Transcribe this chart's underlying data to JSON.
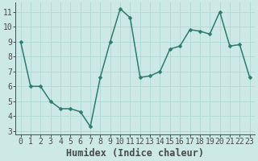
{
  "x": [
    0,
    1,
    2,
    3,
    4,
    5,
    6,
    7,
    8,
    9,
    10,
    11,
    12,
    13,
    14,
    15,
    16,
    17,
    18,
    19,
    20,
    21,
    22,
    23
  ],
  "y": [
    9.0,
    6.0,
    6.0,
    5.0,
    4.5,
    4.5,
    4.3,
    3.3,
    6.6,
    9.0,
    11.2,
    10.6,
    6.6,
    6.7,
    7.0,
    8.5,
    8.7,
    9.8,
    9.7,
    9.5,
    11.0,
    8.7,
    8.8,
    6.6
  ],
  "line_color": "#2d7b6e",
  "marker": "D",
  "marker_size": 2.5,
  "background_color": "#cce9e5",
  "plot_bg_color": "#cce9e5",
  "grid_color": "#b0d8d3",
  "axis_color": "#4a4a4a",
  "xlabel": "Humidex (Indice chaleur)",
  "xlim": [
    -0.5,
    23.5
  ],
  "ylim": [
    2.8,
    11.6
  ],
  "yticks": [
    3,
    4,
    5,
    6,
    7,
    8,
    9,
    10,
    11
  ],
  "xticks": [
    0,
    1,
    2,
    3,
    4,
    5,
    6,
    7,
    8,
    9,
    10,
    11,
    12,
    13,
    14,
    15,
    16,
    17,
    18,
    19,
    20,
    21,
    22,
    23
  ],
  "xlabel_fontsize": 8.5,
  "tick_fontsize": 7,
  "linewidth": 1.1
}
